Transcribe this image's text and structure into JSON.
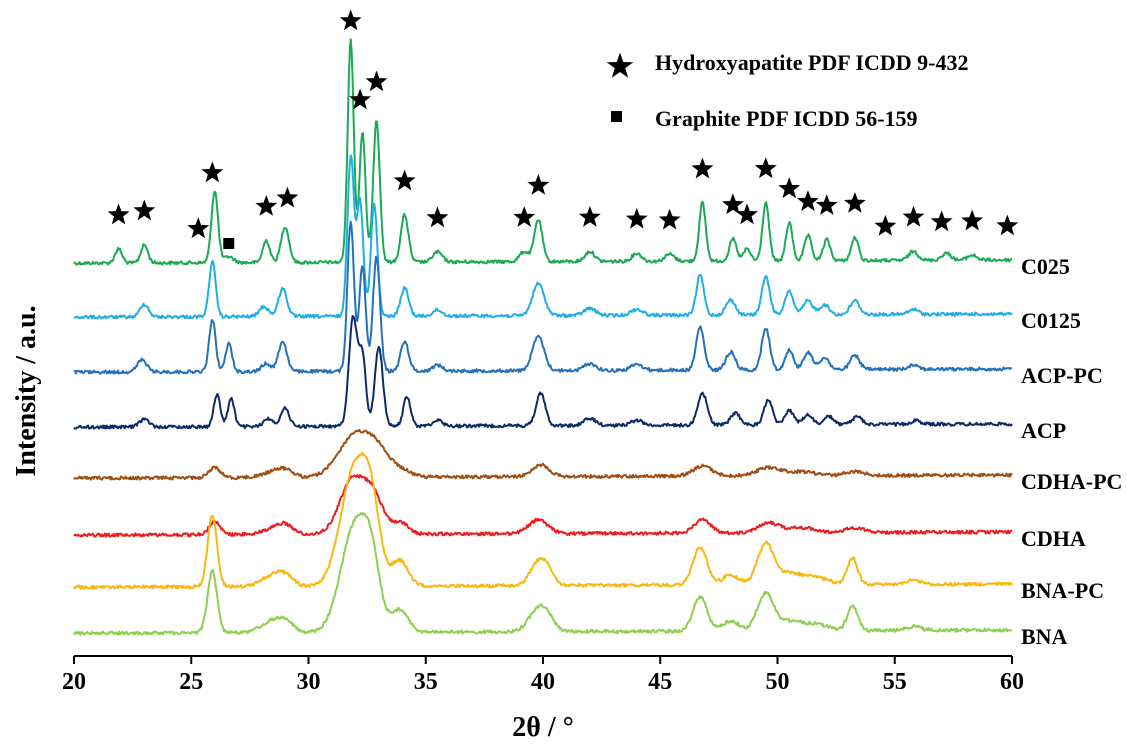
{
  "chart_data": {
    "type": "line",
    "title": "",
    "xlabel": "2θ / °",
    "ylabel": "Intensity / a.u.",
    "xlim": [
      20,
      60
    ],
    "xticks": [
      "20",
      "25",
      "30",
      "35",
      "40",
      "45",
      "50",
      "55",
      "60"
    ],
    "grid": false,
    "y_ticks_shown": false,
    "legend": {
      "placement": "top-right",
      "entries": [
        {
          "symbol": "star",
          "label": "Hydroxyapatite PDF ICDD 9-432"
        },
        {
          "symbol": "square",
          "label": "Graphite PDF ICDD 56-159"
        }
      ]
    },
    "markers": {
      "star_positions_2theta": [
        21.9,
        23.0,
        25.3,
        25.9,
        28.2,
        29.1,
        31.8,
        32.2,
        32.9,
        34.1,
        35.5,
        39.2,
        39.8,
        42.0,
        44.0,
        45.4,
        46.8,
        48.1,
        48.7,
        49.5,
        50.5,
        51.3,
        52.1,
        53.3,
        54.6,
        55.8,
        57.0,
        58.3,
        59.8
      ],
      "square_positions_2theta": [
        26.6
      ]
    },
    "series": [
      {
        "name": "C025",
        "color": "#1aaa54",
        "baseline": 260,
        "peaks": [
          [
            21.9,
            14,
            0.15
          ],
          [
            23.0,
            18,
            0.15
          ],
          [
            26.0,
            72,
            0.14
          ],
          [
            26.6,
            6,
            0.2
          ],
          [
            28.2,
            22,
            0.15
          ],
          [
            29.0,
            36,
            0.17
          ],
          [
            31.8,
            222,
            0.13
          ],
          [
            32.3,
            130,
            0.13
          ],
          [
            32.9,
            143,
            0.14
          ],
          [
            34.1,
            47,
            0.16
          ],
          [
            35.5,
            10,
            0.2
          ],
          [
            39.2,
            10,
            0.2
          ],
          [
            39.8,
            42,
            0.17
          ],
          [
            42.0,
            10,
            0.2
          ],
          [
            44.0,
            8,
            0.2
          ],
          [
            45.4,
            7,
            0.2
          ],
          [
            46.8,
            58,
            0.14
          ],
          [
            48.1,
            22,
            0.15
          ],
          [
            48.7,
            12,
            0.15
          ],
          [
            49.5,
            58,
            0.14
          ],
          [
            50.5,
            38,
            0.14
          ],
          [
            51.3,
            25,
            0.15
          ],
          [
            52.1,
            21,
            0.15
          ],
          [
            53.3,
            23,
            0.15
          ],
          [
            55.8,
            9,
            0.2
          ],
          [
            57.2,
            7,
            0.2
          ],
          [
            58.3,
            5,
            0.2
          ]
        ]
      },
      {
        "name": "C0125",
        "color": "#21aee6",
        "baseline": 314,
        "peaks": [
          [
            23.0,
            13,
            0.18
          ],
          [
            25.9,
            55,
            0.14
          ],
          [
            28.1,
            10,
            0.2
          ],
          [
            28.9,
            28,
            0.18
          ],
          [
            31.8,
            160,
            0.14
          ],
          [
            32.2,
            115,
            0.14
          ],
          [
            32.8,
            112,
            0.14
          ],
          [
            34.1,
            28,
            0.17
          ],
          [
            35.5,
            6,
            0.2
          ],
          [
            39.8,
            32,
            0.25
          ],
          [
            42.0,
            7,
            0.25
          ],
          [
            44.0,
            6,
            0.25
          ],
          [
            46.7,
            40,
            0.16
          ],
          [
            48.0,
            15,
            0.2
          ],
          [
            49.5,
            38,
            0.17
          ],
          [
            50.5,
            24,
            0.17
          ],
          [
            51.3,
            14,
            0.2
          ],
          [
            52.0,
            10,
            0.2
          ],
          [
            53.3,
            14,
            0.2
          ],
          [
            55.8,
            5,
            0.2
          ]
        ]
      },
      {
        "name": "ACP-PC",
        "color": "#2571b8",
        "baseline": 369,
        "peaks": [
          [
            22.9,
            12,
            0.2
          ],
          [
            25.9,
            52,
            0.14
          ],
          [
            26.6,
            28,
            0.14
          ],
          [
            28.2,
            8,
            0.2
          ],
          [
            28.9,
            30,
            0.18
          ],
          [
            31.8,
            150,
            0.14
          ],
          [
            32.3,
            105,
            0.14
          ],
          [
            32.9,
            115,
            0.15
          ],
          [
            34.1,
            30,
            0.17
          ],
          [
            35.5,
            6,
            0.2
          ],
          [
            39.8,
            34,
            0.25
          ],
          [
            42.0,
            7,
            0.25
          ],
          [
            44.0,
            6,
            0.25
          ],
          [
            46.7,
            43,
            0.17
          ],
          [
            48.0,
            18,
            0.2
          ],
          [
            49.5,
            42,
            0.17
          ],
          [
            50.5,
            20,
            0.17
          ],
          [
            51.3,
            17,
            0.2
          ],
          [
            52.0,
            12,
            0.2
          ],
          [
            53.3,
            14,
            0.2
          ],
          [
            55.8,
            5,
            0.2
          ]
        ]
      },
      {
        "name": "ACP",
        "color": "#0e2a66",
        "baseline": 424,
        "peaks": [
          [
            23.0,
            8,
            0.2
          ],
          [
            26.1,
            32,
            0.14
          ],
          [
            26.7,
            28,
            0.14
          ],
          [
            28.3,
            8,
            0.2
          ],
          [
            29.0,
            18,
            0.18
          ],
          [
            31.9,
            108,
            0.18
          ],
          [
            32.3,
            68,
            0.15
          ],
          [
            33.0,
            80,
            0.17
          ],
          [
            34.2,
            30,
            0.15
          ],
          [
            35.5,
            6,
            0.2
          ],
          [
            39.9,
            32,
            0.2
          ],
          [
            42.0,
            7,
            0.25
          ],
          [
            44.0,
            5,
            0.25
          ],
          [
            46.8,
            32,
            0.2
          ],
          [
            48.2,
            12,
            0.2
          ],
          [
            49.6,
            25,
            0.18
          ],
          [
            50.5,
            14,
            0.2
          ],
          [
            51.3,
            10,
            0.2
          ],
          [
            52.2,
            8,
            0.2
          ],
          [
            53.4,
            8,
            0.2
          ],
          [
            55.9,
            4,
            0.2
          ]
        ]
      },
      {
        "name": "CDHA-PC",
        "color": "#9e4f14",
        "baseline": 475,
        "peaks": [
          [
            26.0,
            10,
            0.25
          ],
          [
            28.5,
            5,
            0.5
          ],
          [
            29.0,
            6,
            0.35
          ],
          [
            32.0,
            42,
            0.7
          ],
          [
            33.0,
            20,
            0.5
          ],
          [
            34.0,
            6,
            0.4
          ],
          [
            39.9,
            12,
            0.35
          ],
          [
            46.8,
            10,
            0.4
          ],
          [
            49.6,
            8,
            0.5
          ],
          [
            51.0,
            4,
            0.6
          ],
          [
            53.3,
            4,
            0.4
          ]
        ]
      },
      {
        "name": "CDHA",
        "color": "#ee1c1c",
        "baseline": 532,
        "peaks": [
          [
            26.0,
            14,
            0.22
          ],
          [
            28.5,
            5,
            0.5
          ],
          [
            29.0,
            8,
            0.35
          ],
          [
            31.9,
            55,
            0.55
          ],
          [
            32.8,
            32,
            0.4
          ],
          [
            33.9,
            12,
            0.35
          ],
          [
            39.8,
            14,
            0.4
          ],
          [
            46.8,
            13,
            0.35
          ],
          [
            49.6,
            10,
            0.45
          ],
          [
            51.0,
            5,
            0.6
          ],
          [
            53.3,
            5,
            0.4
          ]
        ]
      },
      {
        "name": "BNA-PC",
        "color": "#f8b80f",
        "baseline": 584,
        "peaks": [
          [
            25.9,
            72,
            0.2
          ],
          [
            28.4,
            10,
            0.45
          ],
          [
            29.0,
            10,
            0.35
          ],
          [
            32.0,
            120,
            0.6
          ],
          [
            32.7,
            50,
            0.35
          ],
          [
            33.9,
            25,
            0.35
          ],
          [
            39.8,
            22,
            0.35
          ],
          [
            40.2,
            10,
            0.3
          ],
          [
            46.7,
            38,
            0.3
          ],
          [
            48.0,
            10,
            0.35
          ],
          [
            49.5,
            42,
            0.35
          ],
          [
            50.5,
            10,
            0.4
          ],
          [
            51.5,
            8,
            0.6
          ],
          [
            53.2,
            26,
            0.22
          ],
          [
            55.8,
            4,
            0.3
          ]
        ]
      },
      {
        "name": "BNA",
        "color": "#8fce4f",
        "baseline": 630,
        "peaks": [
          [
            25.9,
            62,
            0.2
          ],
          [
            28.4,
            10,
            0.45
          ],
          [
            29.0,
            10,
            0.35
          ],
          [
            32.0,
            108,
            0.6
          ],
          [
            32.7,
            45,
            0.35
          ],
          [
            33.9,
            22,
            0.35
          ],
          [
            39.8,
            22,
            0.4
          ],
          [
            40.2,
            8,
            0.3
          ],
          [
            46.7,
            34,
            0.3
          ],
          [
            48.0,
            10,
            0.35
          ],
          [
            49.5,
            38,
            0.35
          ],
          [
            50.5,
            8,
            0.4
          ],
          [
            51.5,
            7,
            0.6
          ],
          [
            53.2,
            24,
            0.22
          ],
          [
            55.8,
            4,
            0.3
          ]
        ]
      }
    ]
  }
}
